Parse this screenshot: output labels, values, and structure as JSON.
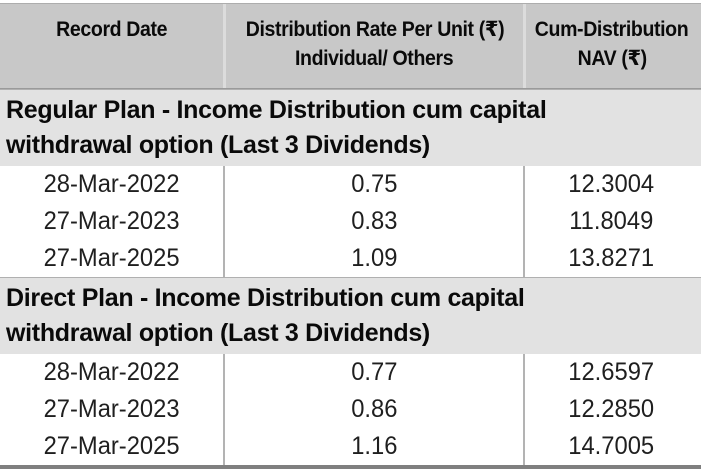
{
  "table": {
    "header": {
      "record_date": "Record Date",
      "dist_rate_line1": "Distribution Rate Per Unit  (₹)",
      "dist_rate_line2": "Individual/ Others",
      "cum_nav_line1": "Cum-Distribution",
      "cum_nav_line2": "NAV (₹)"
    },
    "sections": [
      {
        "title_line1": "Regular Plan - Income Distribution cum capital",
        "title_line2": "withdrawal option (Last 3 Dividends)",
        "rows": [
          {
            "record_date": "28-Mar-2022",
            "rate": "0.75",
            "nav": "12.3004"
          },
          {
            "record_date": "27-Mar-2023",
            "rate": "0.83",
            "nav": "11.8049"
          },
          {
            "record_date": "27-Mar-2025",
            "rate": "1.09",
            "nav": "13.8271"
          }
        ]
      },
      {
        "title_line1": "Direct Plan - Income Distribution cum capital",
        "title_line2": "withdrawal option (Last 3 Dividends)",
        "rows": [
          {
            "record_date": "28-Mar-2022",
            "rate": "0.77",
            "nav": "12.6597"
          },
          {
            "record_date": "27-Mar-2023",
            "rate": "0.86",
            "nav": "12.2850"
          },
          {
            "record_date": "27-Mar-2025",
            "rate": "1.16",
            "nav": "14.7005"
          }
        ]
      }
    ]
  },
  "colors": {
    "header_bg": "#c8c8c8",
    "section_bg": "#e2e2e2",
    "body_divider": "#b3b3b3",
    "bottom_rule": "#7f7f7f"
  }
}
